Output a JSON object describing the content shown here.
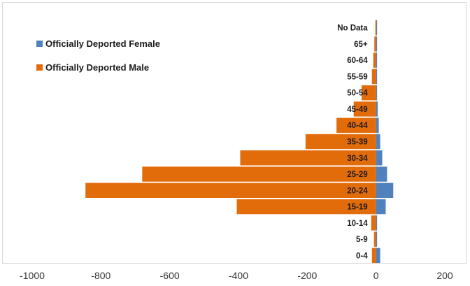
{
  "chart_data": {
    "type": "bar",
    "orientation": "horizontal",
    "categories": [
      "0-4",
      "5-9",
      "10-14",
      "15-19",
      "20-24",
      "25-29",
      "30-34",
      "35-39",
      "40-44",
      "45-49",
      "50-54",
      "55-59",
      "60-64",
      "65+",
      "No Data"
    ],
    "series": [
      {
        "name": "Officially Deported Female",
        "color": "#4f81bd",
        "values": [
          12,
          3,
          3,
          28,
          50,
          32,
          18,
          12,
          8,
          5,
          3,
          2,
          2,
          1,
          2
        ]
      },
      {
        "name": "Officially Deported Male",
        "color": "#e36c0a",
        "values": [
          -12,
          -6,
          -14,
          -405,
          -845,
          -680,
          -395,
          -205,
          -115,
          -65,
          -42,
          -12,
          -8,
          -5,
          -2
        ]
      }
    ],
    "xticks": [
      -1000,
      -800,
      -600,
      -400,
      -200,
      0,
      200
    ],
    "xlim": [
      -1000,
      200
    ],
    "legend_position": "top-left",
    "grid": false
  }
}
